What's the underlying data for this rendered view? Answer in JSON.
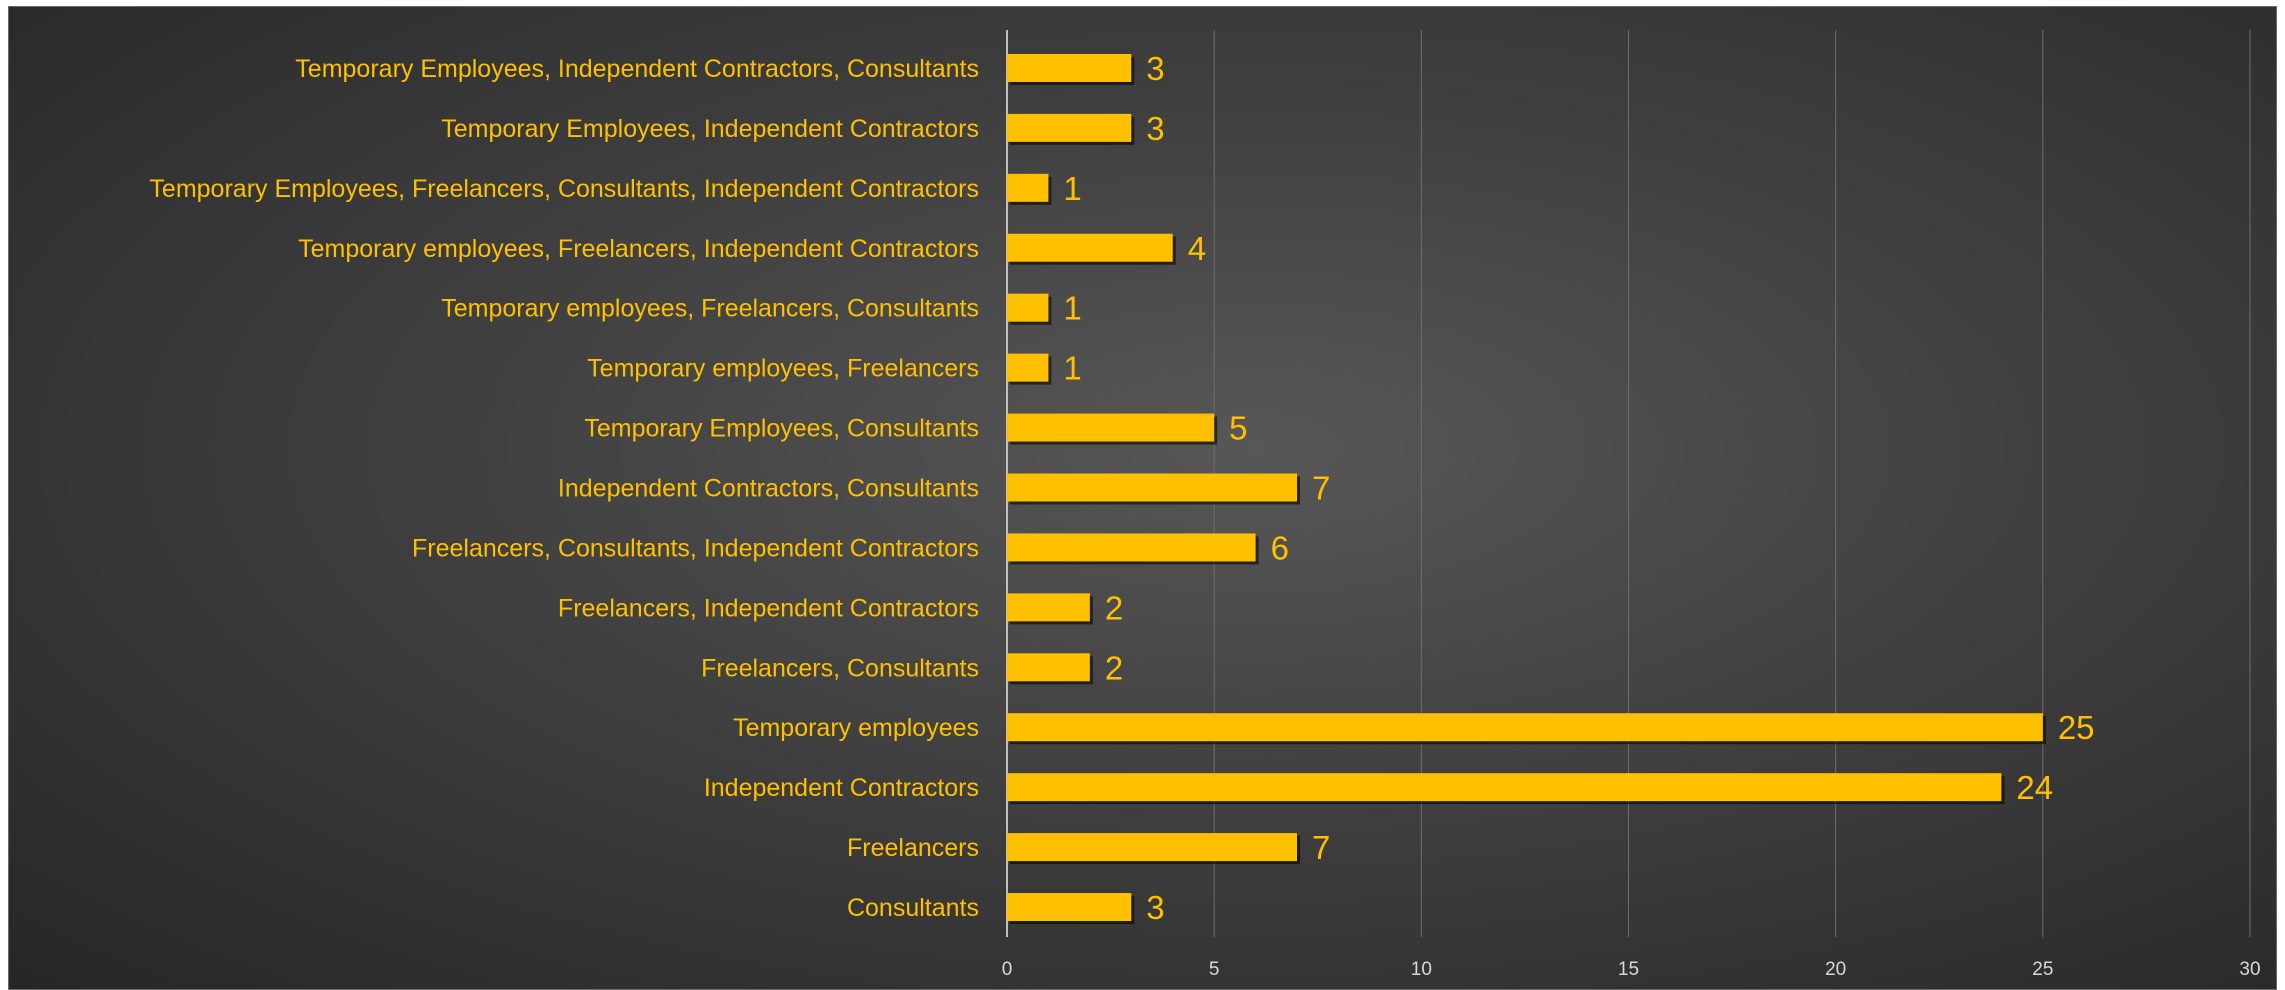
{
  "colors": {
    "bar": "#ffc000",
    "bar_shadow": "#000000",
    "label_text": "#ffc000",
    "tick_text": "#d9d9d9",
    "gridline": "#6e6e6e",
    "axis": "#bfbfbf"
  },
  "chart_data": {
    "type": "bar",
    "orientation": "horizontal",
    "categories": [
      "Consultants",
      "Freelancers",
      "Independent Contractors",
      "Temporary employees",
      "Freelancers, Consultants",
      "Freelancers, Independent Contractors",
      "Freelancers, Consultants, Independent Contractors",
      "Independent Contractors, Consultants",
      "Temporary Employees, Consultants",
      "Temporary employees, Freelancers",
      "Temporary employees, Freelancers, Consultants",
      "Temporary employees, Freelancers, Independent Contractors",
      "Temporary Employees, Freelancers, Consultants, Independent Contractors",
      "Temporary Employees, Independent Contractors",
      "Temporary Employees, Independent Contractors, Consultants"
    ],
    "values": [
      3,
      7,
      24,
      25,
      2,
      2,
      6,
      7,
      5,
      1,
      1,
      4,
      1,
      3,
      3
    ],
    "xlim": [
      0,
      30
    ],
    "xticks": [
      0,
      5,
      10,
      15,
      20,
      25,
      30
    ],
    "grid": true,
    "legend": "none",
    "data_labels": true
  }
}
